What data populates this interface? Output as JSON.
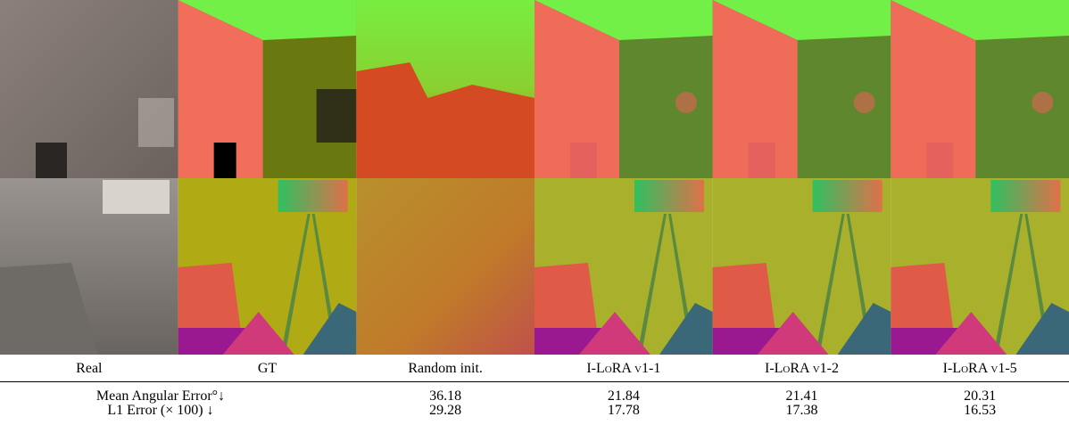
{
  "columns": [
    "Real",
    "GT",
    "Random init.",
    "I-LoRA v1-1",
    "I-LoRA v1-2",
    "I-LoRA v1-5"
  ],
  "metrics": [
    {
      "label": "Mean Angular Error°↓",
      "values": [
        36.18,
        21.84,
        21.41,
        20.31
      ]
    },
    {
      "label": "L1 Error (× 100) ↓",
      "values": [
        29.28,
        17.78,
        17.38,
        16.53
      ]
    }
  ]
}
